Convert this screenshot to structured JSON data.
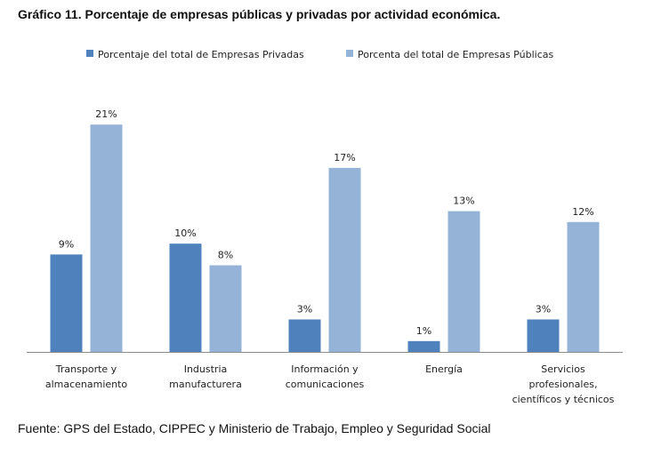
{
  "page": {
    "title": "Gráfico 11. Porcentaje de empresas públicas y privadas por actividad económica.",
    "source": "Fuente: GPS del Estado, CIPPEC y Ministerio de Trabajo, Empleo y Seguridad Social"
  },
  "chart_data": {
    "type": "bar",
    "title": "",
    "xlabel": "",
    "ylabel": "",
    "ylim": [
      0,
      22
    ],
    "grid": false,
    "legend_position": "top",
    "categories": [
      [
        "Transporte y",
        "almacenamiento"
      ],
      [
        "Industria",
        "manufacturera"
      ],
      [
        "Información y",
        "comunicaciones"
      ],
      [
        "Energía"
      ],
      [
        "Servicios",
        "profesionales,",
        "científicos y técnicos"
      ]
    ],
    "series": [
      {
        "name": "Porcentaje del total de Empresas Privadas",
        "color": "#4f81bd",
        "values": [
          9,
          10,
          3,
          1,
          3
        ],
        "labels": [
          "9%",
          "10%",
          "3%",
          "1%",
          "3%"
        ]
      },
      {
        "name": "Porcenta del total de  Empresas Públicas",
        "color": "#95b3d7",
        "values": [
          21,
          8,
          17,
          13,
          12
        ],
        "labels": [
          "21%",
          "8%",
          "17%",
          "13%",
          "12%"
        ]
      }
    ]
  }
}
